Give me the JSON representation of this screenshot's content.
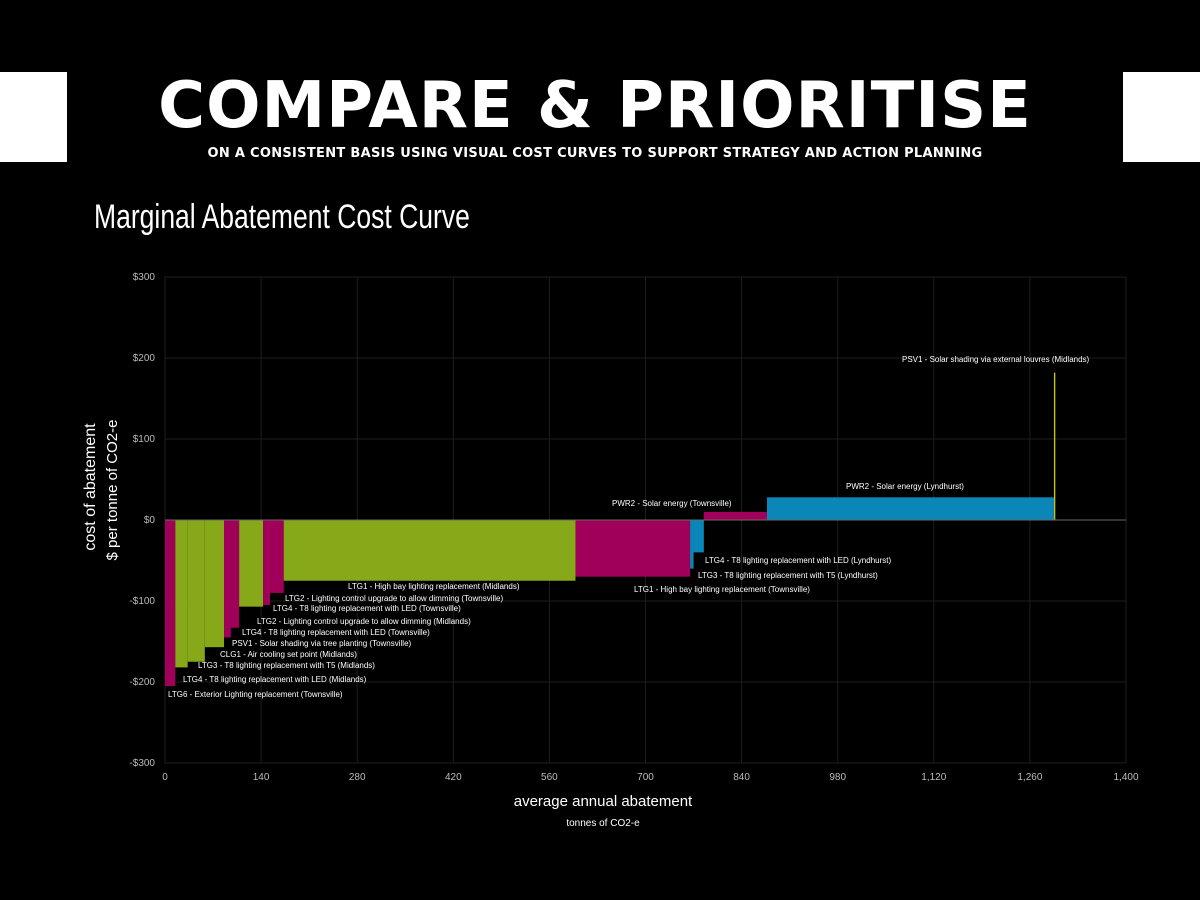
{
  "banner": {
    "headline": "COMPARE & PRIORITISE",
    "subheading": "ON A CONSISTENT BASIS USING VISUAL COST CURVES TO SUPPORT STRATEGY AND ACTION PLANNING"
  },
  "chart_data": {
    "type": "bar",
    "title": "Marginal Abatement Cost Curve",
    "xlabel": "average annual abatement",
    "xlabel_unit": "tonnes of CO2-e",
    "ylabel": "cost of abatement",
    "ylabel_unit": "$ per tonne of CO2-e",
    "xlim": [
      0,
      1400
    ],
    "ylim": [
      -300,
      300
    ],
    "x_ticks": [
      0,
      140,
      280,
      420,
      560,
      700,
      840,
      980,
      1120,
      1260,
      1400
    ],
    "x_tick_labels": [
      "0",
      "140",
      "280",
      "420",
      "560",
      "700",
      "840",
      "980",
      "1,120",
      "1,260",
      "1,400"
    ],
    "y_ticks": [
      300,
      200,
      100,
      0,
      -100,
      -200,
      -300
    ],
    "y_tick_labels": [
      "$300",
      "$200",
      "$100",
      "$0",
      "-$100",
      "-$200",
      "-$300"
    ],
    "grid": true,
    "colors": {
      "magenta": "#a1005a",
      "green": "#86a819",
      "blue": "#0a86b8",
      "yellow": "#c8c800"
    },
    "bars": [
      {
        "label": "LTG6 - Exterior Lighting replacement (Townsville)",
        "start": 0,
        "width": 15,
        "cost": -205,
        "color": "magenta"
      },
      {
        "label": "LTG4 - T8 lighting replacement with LED (Midlands)",
        "start": 15,
        "width": 18,
        "cost": -182,
        "color": "green"
      },
      {
        "label": "LTG3 - T8 lighting replacement with T5 (Midlands)",
        "start": 33,
        "width": 25,
        "cost": -175,
        "color": "green"
      },
      {
        "label": "CLG1 - Air cooling set point (Midlands)",
        "start": 58,
        "width": 28,
        "cost": -157,
        "color": "green"
      },
      {
        "label": "PSV1 - Solar shading via tree planting (Townsville)",
        "start": 86,
        "width": 10,
        "cost": -145,
        "color": "magenta"
      },
      {
        "label": "LTG4 - T8 lighting replacement with LED (Townsville)",
        "start": 96,
        "width": 12,
        "cost": -133,
        "color": "magenta"
      },
      {
        "label": "LTG2 - Lighting control upgrade to allow dimming (Midlands)",
        "start": 108,
        "width": 35,
        "cost": -107,
        "color": "green"
      },
      {
        "label": "LTG4 - T8 lighting replacement with LED (Townsville)",
        "start": 143,
        "width": 10,
        "cost": -105,
        "color": "magenta"
      },
      {
        "label": "LTG2 - Lighting control upgrade to allow dimming (Townsville)",
        "start": 153,
        "width": 20,
        "cost": -90,
        "color": "magenta"
      },
      {
        "label": "LTG1 - High bay lighting replacement (Midlands)",
        "start": 173,
        "width": 425,
        "cost": -75,
        "color": "green"
      },
      {
        "label": "LTG1 - High bay lighting replacement (Townsville)",
        "start": 598,
        "width": 167,
        "cost": -70,
        "color": "magenta"
      },
      {
        "label": "LTG3 - T8 lighting replacement with T5 (Lyndhurst)",
        "start": 765,
        "width": 5,
        "cost": -60,
        "color": "blue"
      },
      {
        "label": "LTG4 - T8 lighting replacement with LED (Lyndhurst)",
        "start": 770,
        "width": 15,
        "cost": -40,
        "color": "blue"
      },
      {
        "label": "PWR2 - Solar energy (Townsville)",
        "start": 785,
        "width": 92,
        "cost": 10,
        "color": "magenta"
      },
      {
        "label": "PWR2 - Solar energy (Lyndhurst)",
        "start": 877,
        "width": 418,
        "cost": 28,
        "color": "blue"
      },
      {
        "label": "PSV1 - Solar shading via external louvres (Midlands)",
        "start": 1295,
        "width": 2,
        "cost": 182,
        "color": "yellow"
      }
    ]
  }
}
